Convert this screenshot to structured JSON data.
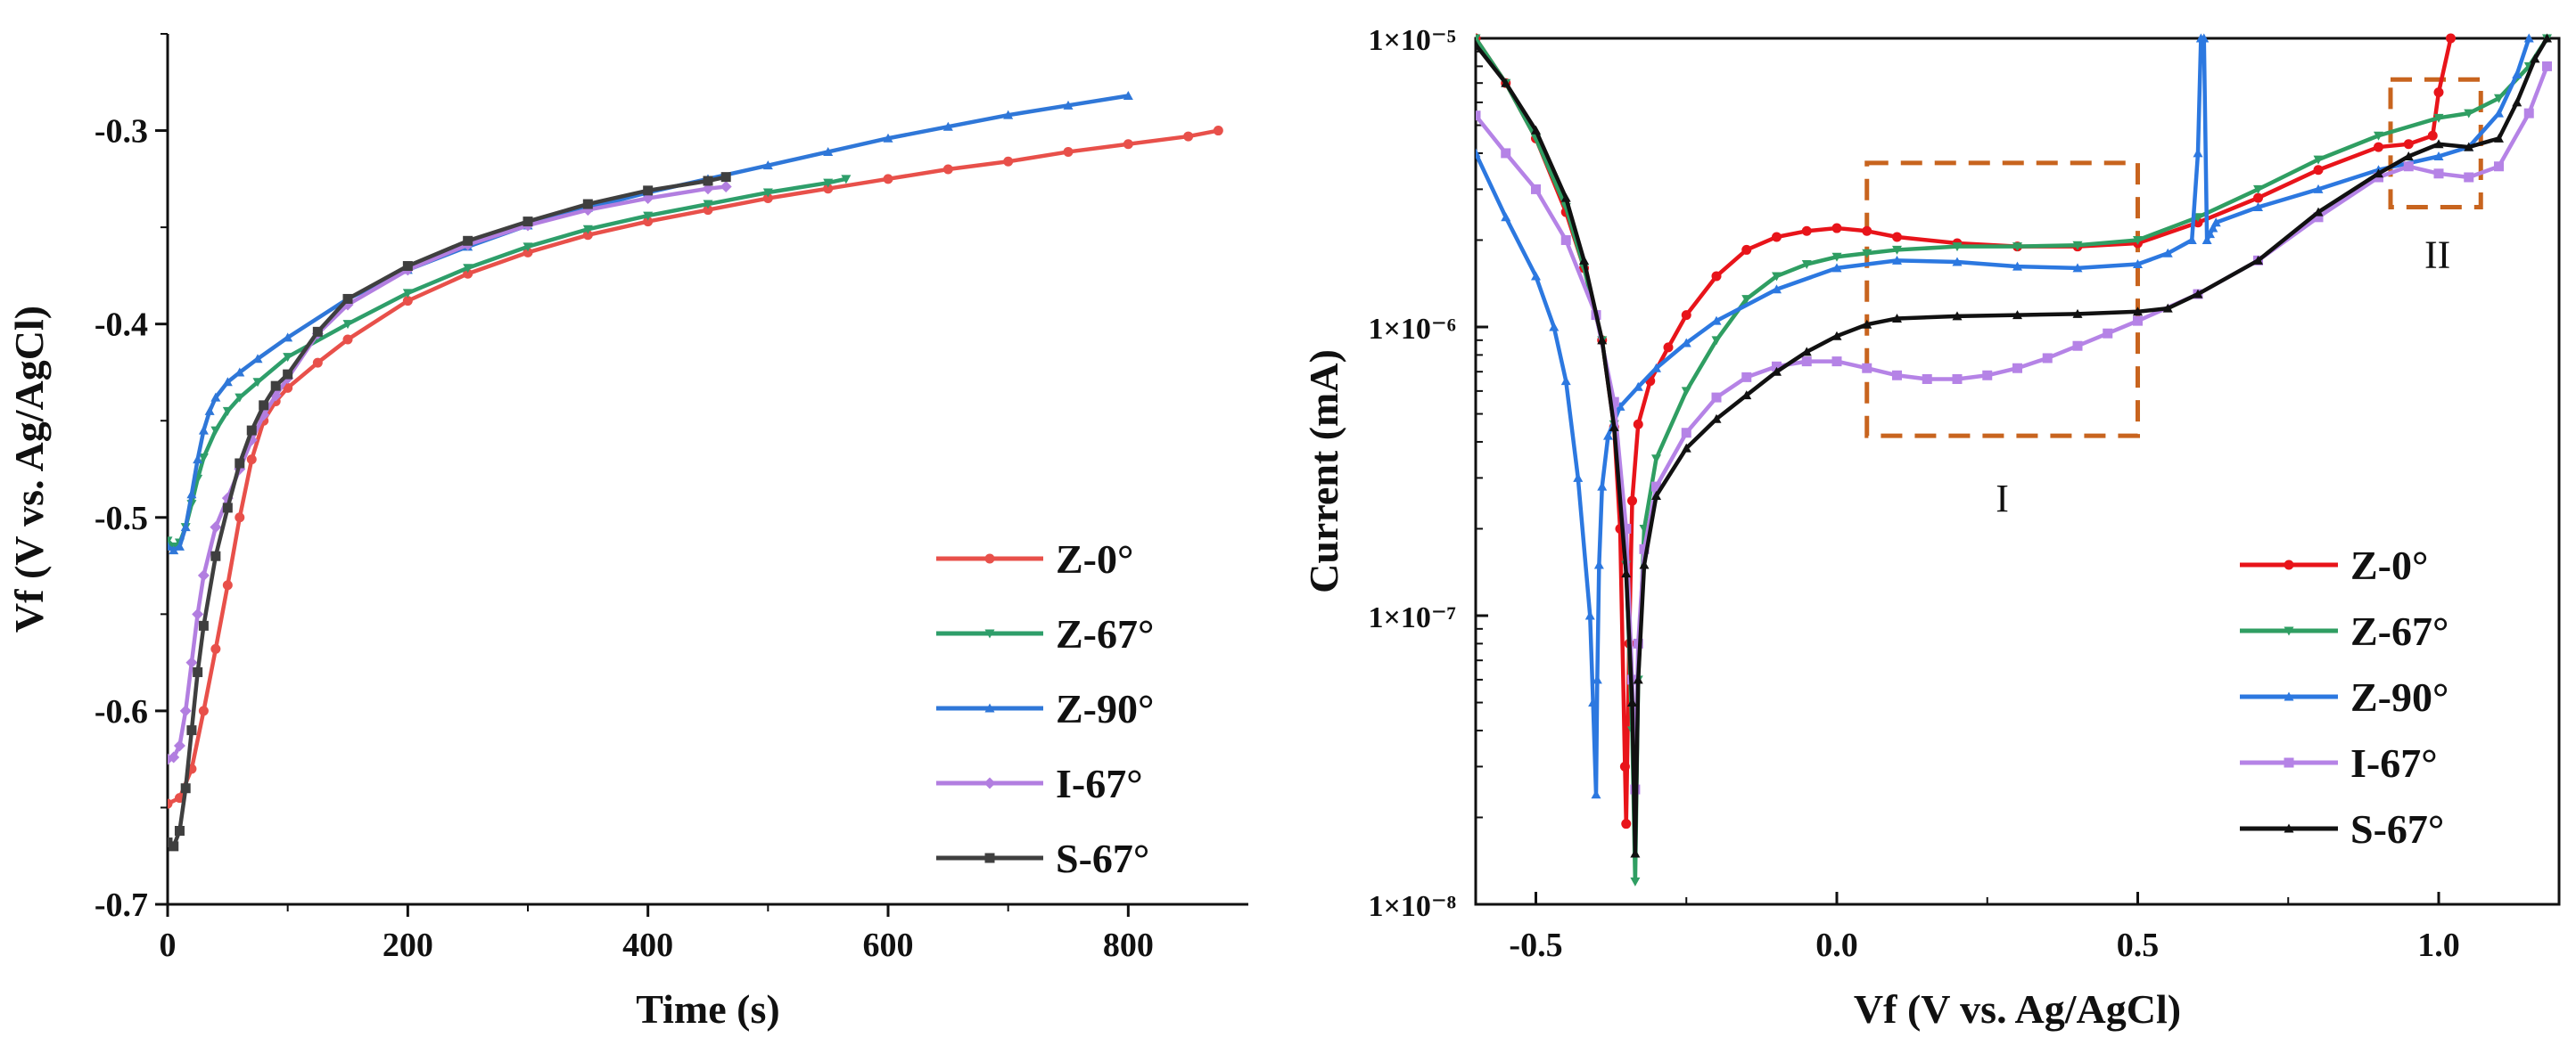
{
  "chart_data": [
    {
      "type": "line",
      "xlabel": "Time (s)",
      "ylabel": "Vf (V vs. Ag/AgCl)",
      "xlim": [
        0,
        900
      ],
      "ylim": [
        -0.7,
        -0.25
      ],
      "x_ticks": [
        {
          "value": 0,
          "label": "0"
        },
        {
          "value": 200,
          "label": "200"
        },
        {
          "value": 400,
          "label": "400"
        },
        {
          "value": 600,
          "label": "600"
        },
        {
          "value": 800,
          "label": "800"
        }
      ],
      "y_ticks": [
        {
          "value": -0.7,
          "label": "-0.7"
        },
        {
          "value": -0.6,
          "label": "-0.6"
        },
        {
          "value": -0.5,
          "label": "-0.5"
        },
        {
          "value": -0.4,
          "label": "-0.4"
        },
        {
          "value": -0.3,
          "label": "-0.3"
        }
      ],
      "legend_position": "bottom-right",
      "series": [
        {
          "name": "Z-0°",
          "color": "#e8504a",
          "marker": "circle",
          "x": [
            0,
            10,
            20,
            30,
            40,
            50,
            60,
            70,
            80,
            90,
            100,
            125,
            150,
            200,
            250,
            300,
            350,
            400,
            450,
            500,
            550,
            600,
            650,
            700,
            750,
            800,
            850,
            875
          ],
          "y": [
            -0.648,
            -0.645,
            -0.63,
            -0.6,
            -0.568,
            -0.535,
            -0.5,
            -0.47,
            -0.45,
            -0.44,
            -0.433,
            -0.42,
            -0.408,
            -0.388,
            -0.374,
            -0.363,
            -0.354,
            -0.347,
            -0.341,
            -0.335,
            -0.33,
            -0.325,
            -0.32,
            -0.316,
            -0.311,
            -0.307,
            -0.303,
            -0.3
          ]
        },
        {
          "name": "Z-67°",
          "color": "#2e9e6a",
          "marker": "triangle-down",
          "x": [
            0,
            5,
            10,
            15,
            20,
            25,
            30,
            40,
            50,
            60,
            75,
            100,
            150,
            200,
            250,
            300,
            350,
            400,
            450,
            500,
            550,
            565
          ],
          "y": [
            -0.512,
            -0.515,
            -0.513,
            -0.505,
            -0.493,
            -0.48,
            -0.469,
            -0.455,
            -0.445,
            -0.438,
            -0.43,
            -0.417,
            -0.4,
            -0.384,
            -0.371,
            -0.36,
            -0.351,
            -0.344,
            -0.338,
            -0.332,
            -0.327,
            -0.325
          ]
        },
        {
          "name": "Z-90°",
          "color": "#2f77d8",
          "marker": "triangle-up",
          "x": [
            0,
            5,
            10,
            15,
            20,
            25,
            30,
            35,
            40,
            50,
            60,
            75,
            100,
            150,
            200,
            250,
            300,
            350,
            400,
            450,
            500,
            550,
            600,
            650,
            700,
            750,
            800
          ],
          "y": [
            -0.515,
            -0.517,
            -0.515,
            -0.505,
            -0.488,
            -0.47,
            -0.455,
            -0.445,
            -0.438,
            -0.43,
            -0.425,
            -0.418,
            -0.407,
            -0.387,
            -0.372,
            -0.36,
            -0.349,
            -0.34,
            -0.332,
            -0.325,
            -0.318,
            -0.311,
            -0.304,
            -0.298,
            -0.292,
            -0.287,
            -0.282
          ]
        },
        {
          "name": "I-67°",
          "color": "#b27ee0",
          "marker": "diamond",
          "x": [
            0,
            5,
            10,
            15,
            20,
            25,
            30,
            40,
            50,
            60,
            70,
            80,
            90,
            100,
            125,
            150,
            200,
            250,
            300,
            350,
            400,
            450,
            465
          ],
          "y": [
            -0.625,
            -0.624,
            -0.618,
            -0.6,
            -0.575,
            -0.55,
            -0.53,
            -0.505,
            -0.49,
            -0.475,
            -0.46,
            -0.447,
            -0.437,
            -0.428,
            -0.405,
            -0.39,
            -0.372,
            -0.359,
            -0.349,
            -0.341,
            -0.335,
            -0.33,
            -0.329
          ]
        },
        {
          "name": "S-67°",
          "color": "#3f3f3f",
          "marker": "square",
          "x": [
            0,
            5,
            10,
            15,
            20,
            25,
            30,
            40,
            50,
            60,
            70,
            80,
            90,
            100,
            125,
            150,
            200,
            250,
            300,
            350,
            400,
            450,
            465
          ],
          "y": [
            -0.668,
            -0.67,
            -0.662,
            -0.64,
            -0.61,
            -0.58,
            -0.556,
            -0.52,
            -0.495,
            -0.472,
            -0.455,
            -0.442,
            -0.432,
            -0.426,
            -0.404,
            -0.387,
            -0.37,
            -0.357,
            -0.347,
            -0.338,
            -0.331,
            -0.326,
            -0.324
          ]
        }
      ]
    },
    {
      "type": "line",
      "yscale": "log",
      "xlabel": "Vf (V vs. Ag/AgCl)",
      "ylabel": "Current (mA)",
      "xlim": [
        -0.6,
        1.2
      ],
      "ylim": [
        1e-08,
        1e-05
      ],
      "x_ticks": [
        {
          "value": -0.5,
          "label": "-0.5"
        },
        {
          "value": 0.0,
          "label": "0.0"
        },
        {
          "value": 0.5,
          "label": "0.5"
        },
        {
          "value": 1.0,
          "label": "1.0"
        }
      ],
      "y_ticks": [
        {
          "value": 1e-08,
          "label": "1×10⁻⁸"
        },
        {
          "value": 1e-07,
          "label": "1×10⁻⁷"
        },
        {
          "value": 1e-06,
          "label": "1×10⁻⁶"
        },
        {
          "value": 1e-05,
          "label": "1×10⁻⁵"
        }
      ],
      "legend_position": "bottom-right",
      "annotations": [
        {
          "label": "I",
          "x_range": [
            0.05,
            0.5
          ],
          "y_range": [
            4.2e-07,
            3.7e-06
          ]
        },
        {
          "label": "II",
          "x_range": [
            0.92,
            1.07
          ],
          "y_range": [
            2.6e-06,
            7.2e-06
          ]
        }
      ],
      "series": [
        {
          "name": "Z-0°",
          "color": "#e8141a",
          "marker": "circle",
          "x": [
            -0.6,
            -0.55,
            -0.5,
            -0.45,
            -0.42,
            -0.39,
            -0.37,
            -0.36,
            -0.352,
            -0.35,
            -0.345,
            -0.34,
            -0.33,
            -0.31,
            -0.28,
            -0.25,
            -0.2,
            -0.15,
            -0.1,
            -0.05,
            0.0,
            0.05,
            0.1,
            0.2,
            0.3,
            0.4,
            0.5,
            0.6,
            0.7,
            0.8,
            0.9,
            0.95,
            0.99,
            1.0,
            1.02
          ],
          "y": [
            1e-05,
            7e-06,
            4.5e-06,
            2.5e-06,
            1.6e-06,
            9e-07,
            4.5e-07,
            2e-07,
            3e-08,
            1.9e-08,
            8e-08,
            2.5e-07,
            4.6e-07,
            6.5e-07,
            8.5e-07,
            1.1e-06,
            1.5e-06,
            1.85e-06,
            2.05e-06,
            2.15e-06,
            2.2e-06,
            2.15e-06,
            2.05e-06,
            1.95e-06,
            1.9e-06,
            1.9e-06,
            1.95e-06,
            2.3e-06,
            2.8e-06,
            3.5e-06,
            4.2e-06,
            4.3e-06,
            4.6e-06,
            6.5e-06,
            1e-05
          ]
        },
        {
          "name": "Z-67°",
          "color": "#2f9e62",
          "marker": "triangle-down",
          "x": [
            -0.6,
            -0.55,
            -0.5,
            -0.45,
            -0.42,
            -0.39,
            -0.37,
            -0.35,
            -0.34,
            -0.335,
            -0.33,
            -0.32,
            -0.3,
            -0.25,
            -0.2,
            -0.15,
            -0.1,
            -0.05,
            0.0,
            0.05,
            0.1,
            0.2,
            0.3,
            0.4,
            0.5,
            0.6,
            0.7,
            0.8,
            0.9,
            1.0,
            1.05,
            1.1,
            1.15,
            1.18
          ],
          "y": [
            1e-05,
            7e-06,
            4.5e-06,
            2.6e-06,
            1.6e-06,
            9e-07,
            4.6e-07,
            1.5e-07,
            4e-08,
            1.2e-08,
            6e-08,
            2e-07,
            3.5e-07,
            6e-07,
            9e-07,
            1.25e-06,
            1.5e-06,
            1.65e-06,
            1.75e-06,
            1.8e-06,
            1.85e-06,
            1.9e-06,
            1.9e-06,
            1.92e-06,
            2e-06,
            2.4e-06,
            3e-06,
            3.8e-06,
            4.6e-06,
            5.3e-06,
            5.5e-06,
            6.2e-06,
            8e-06,
            1e-05
          ]
        },
        {
          "name": "Z-90°",
          "color": "#2c78e0",
          "marker": "triangle-up",
          "x": [
            -0.6,
            -0.55,
            -0.5,
            -0.47,
            -0.45,
            -0.43,
            -0.41,
            -0.405,
            -0.4,
            -0.398,
            -0.395,
            -0.39,
            -0.38,
            -0.36,
            -0.33,
            -0.3,
            -0.25,
            -0.2,
            -0.1,
            0.0,
            0.1,
            0.2,
            0.3,
            0.4,
            0.5,
            0.55,
            0.59,
            0.6,
            0.605,
            0.61,
            0.615,
            0.62,
            0.625,
            0.63,
            0.7,
            0.8,
            0.9,
            1.0,
            1.05,
            1.1,
            1.13,
            1.15
          ],
          "y": [
            4e-06,
            2.4e-06,
            1.5e-06,
            1e-06,
            6.5e-07,
            3e-07,
            1e-07,
            5e-08,
            2.4e-08,
            6e-08,
            1.5e-07,
            2.8e-07,
            4.2e-07,
            5.3e-07,
            6.2e-07,
            7.2e-07,
            8.8e-07,
            1.05e-06,
            1.35e-06,
            1.6e-06,
            1.7e-06,
            1.68e-06,
            1.62e-06,
            1.6e-06,
            1.65e-06,
            1.8e-06,
            2e-06,
            4e-06,
            1e-05,
            1e-05,
            2e-06,
            2.1e-06,
            2.2e-06,
            2.3e-06,
            2.6e-06,
            3e-06,
            3.5e-06,
            3.9e-06,
            4.2e-06,
            5.5e-06,
            7.5e-06,
            1e-05
          ]
        },
        {
          "name": "I-67°",
          "color": "#b583e6",
          "marker": "square",
          "x": [
            -0.6,
            -0.55,
            -0.5,
            -0.45,
            -0.4,
            -0.37,
            -0.35,
            -0.34,
            -0.335,
            -0.33,
            -0.32,
            -0.3,
            -0.25,
            -0.2,
            -0.15,
            -0.1,
            -0.05,
            0.0,
            0.05,
            0.1,
            0.15,
            0.2,
            0.25,
            0.3,
            0.35,
            0.4,
            0.45,
            0.5,
            0.6,
            0.7,
            0.8,
            0.9,
            0.95,
            1.0,
            1.05,
            1.1,
            1.15,
            1.18
          ],
          "y": [
            5.4e-06,
            4e-06,
            3e-06,
            2e-06,
            1.1e-06,
            5.5e-07,
            2e-07,
            6e-08,
            2.5e-08,
            8e-08,
            1.7e-07,
            2.8e-07,
            4.3e-07,
            5.7e-07,
            6.7e-07,
            7.3e-07,
            7.6e-07,
            7.6e-07,
            7.2e-07,
            6.8e-07,
            6.6e-07,
            6.6e-07,
            6.8e-07,
            7.2e-07,
            7.8e-07,
            8.6e-07,
            9.5e-07,
            1.05e-06,
            1.3e-06,
            1.7e-06,
            2.4e-06,
            3.3e-06,
            3.6e-06,
            3.4e-06,
            3.3e-06,
            3.6e-06,
            5.5e-06,
            8e-06
          ]
        },
        {
          "name": "S-67°",
          "color": "#111111",
          "marker": "triangle-up",
          "x": [
            -0.6,
            -0.55,
            -0.5,
            -0.45,
            -0.42,
            -0.39,
            -0.37,
            -0.35,
            -0.34,
            -0.335,
            -0.33,
            -0.32,
            -0.3,
            -0.25,
            -0.2,
            -0.15,
            -0.1,
            -0.05,
            0.0,
            0.05,
            0.1,
            0.2,
            0.3,
            0.4,
            0.5,
            0.55,
            0.6,
            0.7,
            0.8,
            0.9,
            0.95,
            1.0,
            1.05,
            1.1,
            1.13,
            1.16,
            1.18
          ],
          "y": [
            9.5e-06,
            7e-06,
            4.8e-06,
            2.8e-06,
            1.7e-06,
            9e-07,
            4.5e-07,
            1.4e-07,
            5e-08,
            1.5e-08,
            6e-08,
            1.5e-07,
            2.6e-07,
            3.8e-07,
            4.8e-07,
            5.8e-07,
            7e-07,
            8.2e-07,
            9.3e-07,
            1.02e-06,
            1.07e-06,
            1.09e-06,
            1.1e-06,
            1.11e-06,
            1.13e-06,
            1.16e-06,
            1.3e-06,
            1.7e-06,
            2.5e-06,
            3.4e-06,
            3.9e-06,
            4.3e-06,
            4.2e-06,
            4.5e-06,
            6e-06,
            8.5e-06,
            1e-05
          ]
        }
      ]
    }
  ]
}
